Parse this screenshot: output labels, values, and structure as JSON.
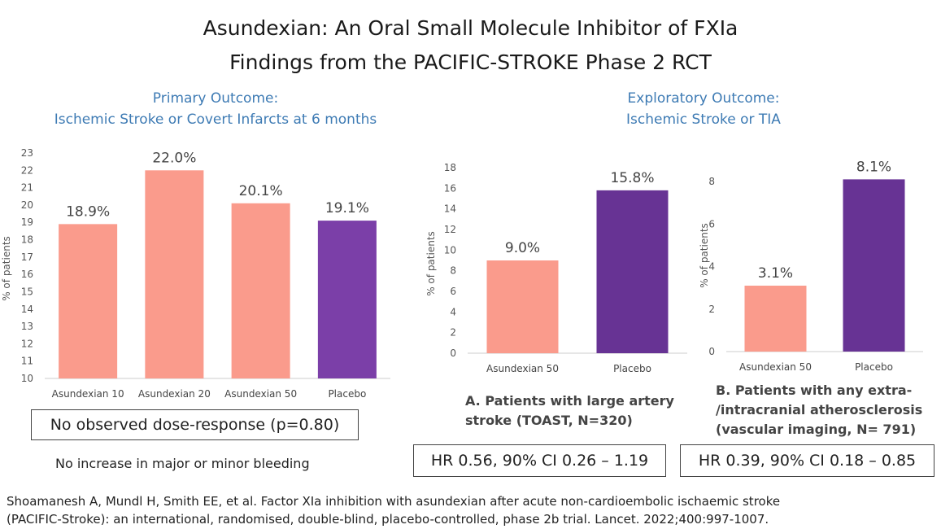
{
  "title": {
    "line1": "Asundexian: An Oral Small Molecule Inhibitor of FXIa",
    "line2": "Findings from the PACIFIC-STROKE Phase 2 RCT"
  },
  "primary": {
    "heading1": "Primary Outcome:",
    "heading2": "Ischemic Stroke or Covert Infarcts at 6 months",
    "note_box": "No observed dose-response (p=0.80)",
    "bleeding_note": "No increase in major or minor bleeding"
  },
  "exploratory": {
    "heading1": "Exploratory Outcome:",
    "heading2": "Ischemic Stroke or TIA"
  },
  "panel_a": {
    "caption1": "A. Patients with large artery",
    "caption2": "stroke (TOAST, N=320)",
    "hr_box": "HR 0.56, 90% CI 0.26 – 1.19"
  },
  "panel_b": {
    "caption1": "B. Patients with any extra-",
    "caption2": "/intracranial atherosclerosis",
    "caption3": "(vascular imaging, N= 791)",
    "hr_box": "HR 0.39, 90% CI 0.18 – 0.85"
  },
  "citation": {
    "line1": "Shoamanesh A, Mundl H, Smith EE, et al. Factor XIa inhibition with asundexian after acute non-cardioembolic ischaemic stroke",
    "line2": "(PACIFIC-Stroke): an international, randomised, double-blind, placebo-controlled, phase 2b trial. Lancet. 2022;400:997-1007."
  },
  "colors": {
    "salmon": "#fa9b8c",
    "purple1": "#7b3fa8",
    "purple2": "#673394",
    "axis": "#cccccc",
    "text": "#555555"
  },
  "chart_data": [
    {
      "id": "primary",
      "type": "bar",
      "title": "Ischemic Stroke or Covert Infarcts at 6 months",
      "xlabel": "",
      "ylabel": "% of patients",
      "categories": [
        "Asundexian 10",
        "Asundexian 20",
        "Asundexian 50",
        "Placebo"
      ],
      "values": [
        18.9,
        22.0,
        20.1,
        19.1
      ],
      "labels": [
        "18.9%",
        "22.0%",
        "20.1%",
        "19.1%"
      ],
      "colors": [
        "#fa9b8c",
        "#fa9b8c",
        "#fa9b8c",
        "#7b3fa8"
      ],
      "ylim": [
        10,
        23
      ],
      "yticks": [
        10,
        11,
        12,
        13,
        14,
        15,
        16,
        17,
        18,
        19,
        20,
        21,
        22,
        23
      ],
      "grid": false
    },
    {
      "id": "panel_a",
      "type": "bar",
      "title": "A. Patients with large artery stroke (TOAST, N=320)",
      "xlabel": "",
      "ylabel": "% of patients",
      "categories": [
        "Asundexian 50",
        "Placebo"
      ],
      "values": [
        9.0,
        15.8
      ],
      "labels": [
        "9.0%",
        "15.8%"
      ],
      "colors": [
        "#fa9b8c",
        "#673394"
      ],
      "ylim": [
        0,
        18
      ],
      "yticks": [
        0,
        2,
        4,
        6,
        8,
        10,
        12,
        14,
        16,
        18
      ],
      "grid": false
    },
    {
      "id": "panel_b",
      "type": "bar",
      "title": "B. Patients with any extra-/intracranial atherosclerosis (vascular imaging, N= 791)",
      "xlabel": "",
      "ylabel": "% of patients",
      "categories": [
        "Asundexian 50",
        "Placebo"
      ],
      "values": [
        3.1,
        8.1
      ],
      "labels": [
        "3.1%",
        "8.1%"
      ],
      "colors": [
        "#fa9b8c",
        "#673394"
      ],
      "ylim": [
        0,
        8
      ],
      "yticks": [
        0,
        2,
        4,
        6,
        8
      ],
      "grid": false
    }
  ]
}
